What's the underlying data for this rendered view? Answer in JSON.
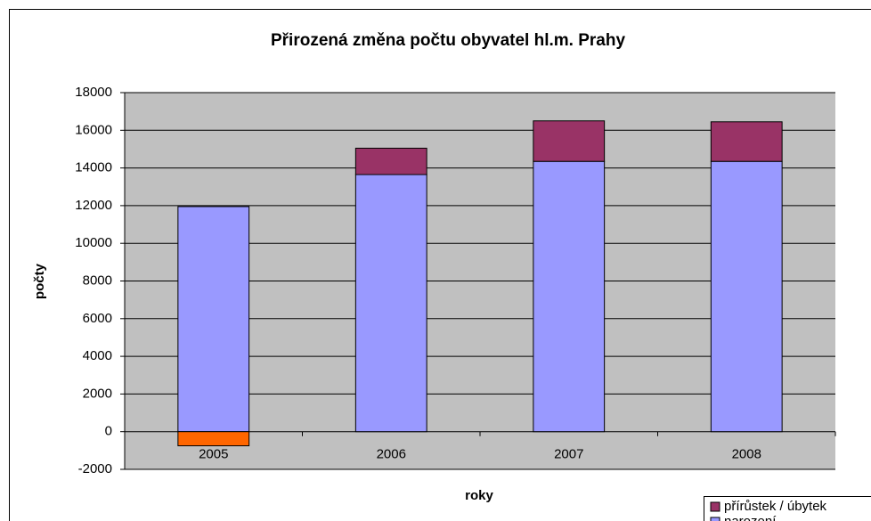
{
  "chart_data": {
    "type": "stacked_bar",
    "title": "Přirozená změna počtu obyvatel hl.m. Prahy",
    "xlabel": "roky",
    "ylabel": "počty",
    "categories": [
      "2005",
      "2006",
      "2007",
      "2008"
    ],
    "series": [
      {
        "name": "narození",
        "color": "#9999ff",
        "values": [
          11950,
          13650,
          14350,
          14350
        ]
      },
      {
        "name": "přírůstek / úbytek",
        "color": "#993366",
        "colors": [
          "#ff6600",
          "#993366",
          "#993366",
          "#993366"
        ],
        "values": [
          -750,
          1400,
          2150,
          2100
        ]
      }
    ],
    "ylim": [
      -2000,
      18000
    ],
    "yticks": [
      -2000,
      0,
      2000,
      4000,
      6000,
      8000,
      10000,
      12000,
      14000,
      16000,
      18000
    ],
    "grid": true,
    "legend": "bottom-right"
  }
}
